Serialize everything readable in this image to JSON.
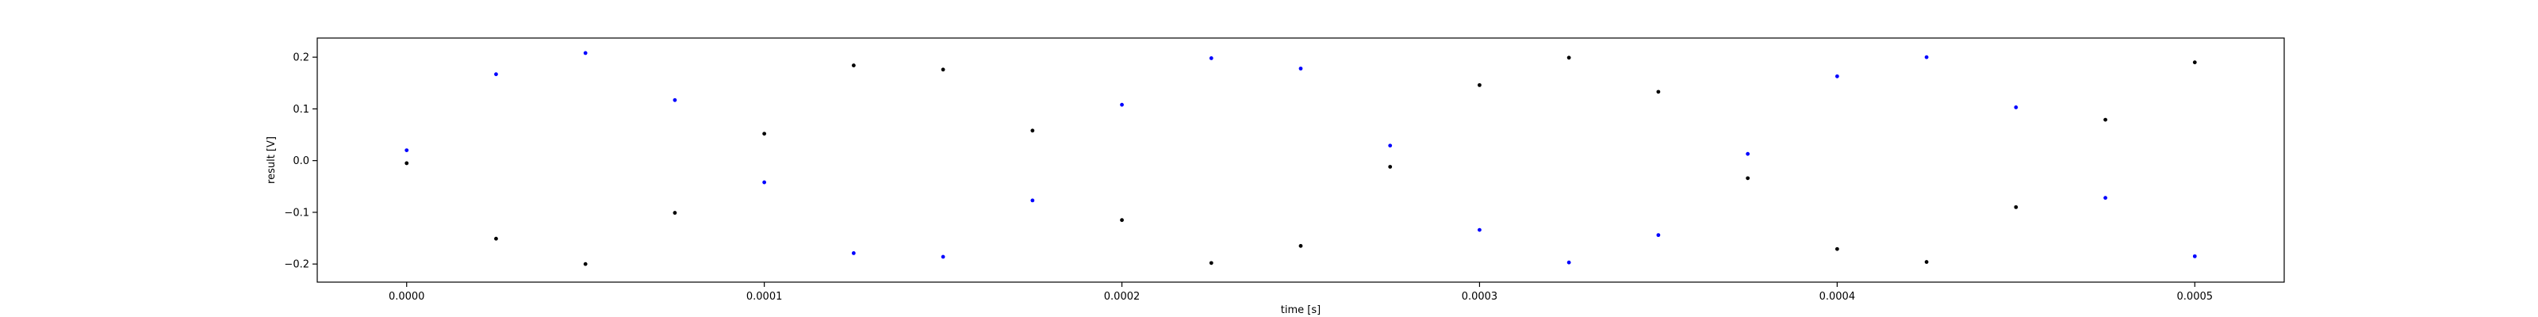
{
  "chart_data": {
    "type": "scatter",
    "title": "",
    "xlabel": "time [s]",
    "ylabel": "result [V]",
    "xlim": [
      -2.5e-05,
      0.000525
    ],
    "ylim": [
      -0.235,
      0.237
    ],
    "grid": false,
    "x_ticks": [
      0.0,
      0.0001,
      0.0002,
      0.0003,
      0.0004,
      0.0005
    ],
    "x_tick_labels": [
      "0.0000",
      "0.0001",
      "0.0002",
      "0.0003",
      "0.0004",
      "0.0005"
    ],
    "y_ticks": [
      -0.2,
      -0.1,
      0.0,
      0.1,
      0.2
    ],
    "y_tick_labels": [
      "−0.2",
      "−0.1",
      "0.0",
      "0.1",
      "0.2"
    ],
    "series": [
      {
        "color": "#0000ff",
        "marker": "dot",
        "x": [
          0.0,
          2.5e-05,
          5e-05,
          7.5e-05,
          0.0001,
          0.000125,
          0.00015,
          0.000175,
          0.0002,
          0.000225,
          0.00025,
          0.000275,
          0.0003,
          0.000325,
          0.00035,
          0.000375,
          0.0004,
          0.000425,
          0.00045,
          0.000475,
          0.0005
        ],
        "y": [
          0.02,
          0.167,
          0.208,
          0.117,
          -0.042,
          -0.179,
          -0.186,
          -0.077,
          0.108,
          0.198,
          0.178,
          0.029,
          -0.134,
          -0.197,
          -0.144,
          0.013,
          0.163,
          0.2,
          0.103,
          -0.072,
          -0.185
        ]
      },
      {
        "color": "#000000",
        "marker": "dot",
        "x": [
          0.0,
          2.5e-05,
          5e-05,
          7.5e-05,
          0.0001,
          0.000125,
          0.00015,
          0.000175,
          0.0002,
          0.000225,
          0.00025,
          0.000275,
          0.0003,
          0.000325,
          0.00035,
          0.000375,
          0.0004,
          0.000425,
          0.00045,
          0.000475,
          0.0005
        ],
        "y": [
          -0.005,
          -0.151,
          -0.2,
          -0.101,
          0.052,
          0.184,
          0.176,
          0.058,
          -0.115,
          -0.198,
          -0.165,
          -0.012,
          0.146,
          0.199,
          0.133,
          -0.034,
          -0.171,
          -0.196,
          -0.09,
          0.079,
          0.19
        ]
      }
    ]
  }
}
